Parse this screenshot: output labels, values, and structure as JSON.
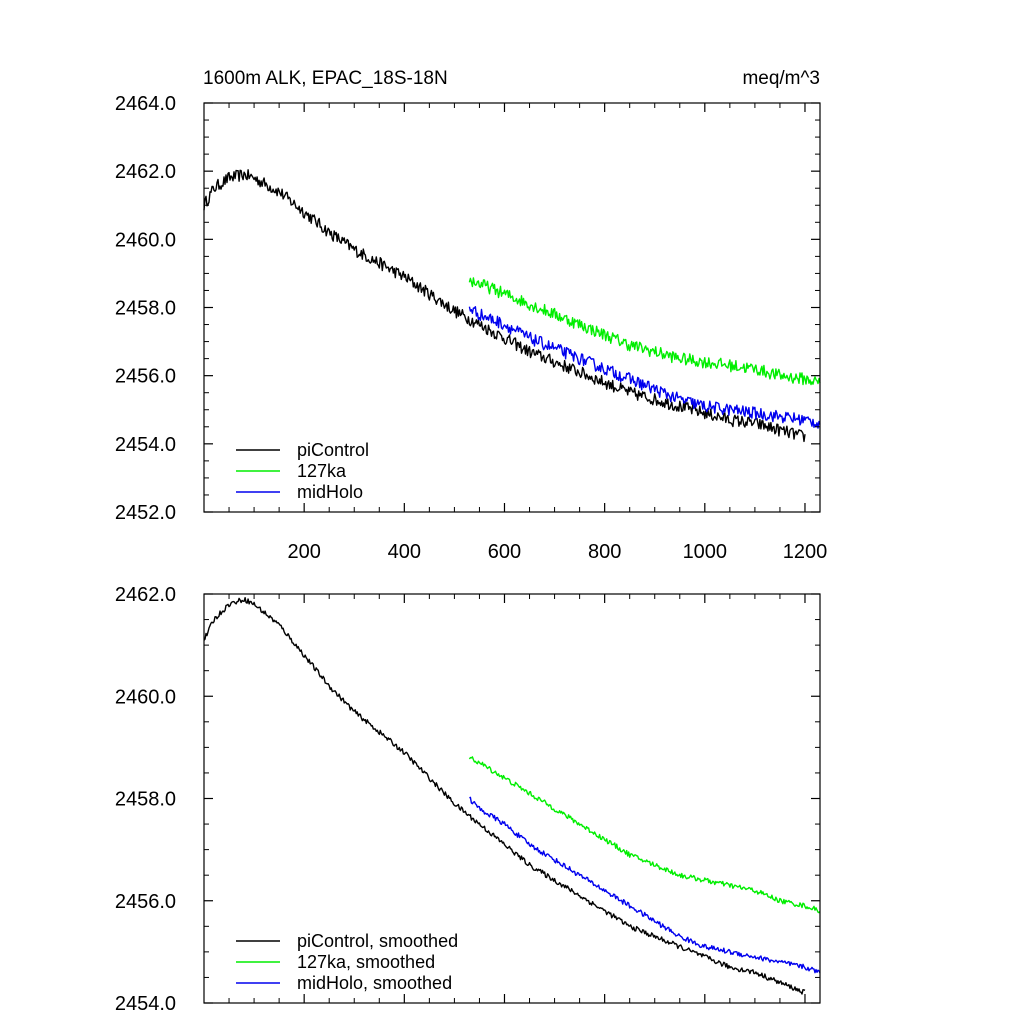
{
  "chart_data": [
    {
      "type": "line",
      "title_left": "1600m ALK, EPAC_18S-18N",
      "title_right": "meq/m^3",
      "xlim": [
        0,
        1230
      ],
      "ylim": [
        2452,
        2464
      ],
      "x_ticks": [
        200,
        400,
        600,
        800,
        1000,
        1200
      ],
      "x_tick_labels": [
        "200",
        "400",
        "600",
        "800",
        "1000",
        "1200"
      ],
      "y_ticks": [
        2452,
        2454,
        2456,
        2458,
        2460,
        2462,
        2464
      ],
      "y_tick_labels": [
        "2452.0",
        "2454.0",
        "2456.0",
        "2458.0",
        "2460.0",
        "2462.0",
        "2464.0"
      ],
      "legend_position": "bottom-left",
      "series": [
        {
          "name": "piControl",
          "color": "#000000",
          "noise": 0.18,
          "x": [
            0,
            20,
            50,
            80,
            100,
            150,
            200,
            250,
            300,
            350,
            400,
            450,
            500,
            550,
            600,
            650,
            700,
            750,
            800,
            850,
            900,
            950,
            1000,
            1050,
            1100,
            1150,
            1200
          ],
          "y": [
            2461.0,
            2461.5,
            2461.8,
            2461.9,
            2461.8,
            2461.4,
            2460.8,
            2460.2,
            2459.7,
            2459.3,
            2458.9,
            2458.4,
            2457.9,
            2457.5,
            2457.1,
            2456.7,
            2456.4,
            2456.1,
            2455.8,
            2455.5,
            2455.3,
            2455.1,
            2454.9,
            2454.7,
            2454.6,
            2454.4,
            2454.2
          ]
        },
        {
          "name": "127ka",
          "color": "#00ee00",
          "noise": 0.18,
          "x": [
            530,
            550,
            600,
            650,
            700,
            750,
            800,
            850,
            900,
            950,
            1000,
            1050,
            1100,
            1150,
            1200,
            1230
          ],
          "y": [
            2458.8,
            2458.7,
            2458.4,
            2458.1,
            2457.8,
            2457.5,
            2457.2,
            2456.9,
            2456.7,
            2456.5,
            2456.4,
            2456.3,
            2456.2,
            2456.0,
            2455.9,
            2455.8
          ]
        },
        {
          "name": "midHolo",
          "color": "#0000ee",
          "noise": 0.18,
          "x": [
            530,
            550,
            600,
            650,
            700,
            750,
            800,
            850,
            900,
            950,
            1000,
            1050,
            1100,
            1150,
            1200,
            1230
          ],
          "y": [
            2458.0,
            2457.8,
            2457.5,
            2457.1,
            2456.8,
            2456.5,
            2456.2,
            2455.9,
            2455.6,
            2455.3,
            2455.1,
            2455.0,
            2454.9,
            2454.8,
            2454.7,
            2454.6
          ]
        }
      ]
    },
    {
      "type": "line",
      "xlim": [
        0,
        1230
      ],
      "ylim": [
        2454,
        2462
      ],
      "x_ticks": [
        200,
        400,
        600,
        800,
        1000,
        1200
      ],
      "y_ticks": [
        2454,
        2456,
        2458,
        2460,
        2462
      ],
      "y_tick_labels": [
        "2454.0",
        "2456.0",
        "2458.0",
        "2460.0",
        "2462.0"
      ],
      "legend_position": "bottom-left",
      "series": [
        {
          "name": "piControl, smoothed",
          "color": "#000000",
          "noise": 0.05,
          "x": [
            0,
            20,
            50,
            80,
            100,
            150,
            200,
            250,
            300,
            350,
            400,
            450,
            500,
            550,
            600,
            650,
            700,
            750,
            800,
            850,
            900,
            950,
            1000,
            1050,
            1100,
            1150,
            1200
          ],
          "y": [
            2461.1,
            2461.5,
            2461.8,
            2461.9,
            2461.8,
            2461.4,
            2460.8,
            2460.2,
            2459.7,
            2459.3,
            2458.9,
            2458.4,
            2457.9,
            2457.5,
            2457.1,
            2456.7,
            2456.4,
            2456.1,
            2455.8,
            2455.5,
            2455.3,
            2455.1,
            2454.9,
            2454.7,
            2454.6,
            2454.4,
            2454.2
          ]
        },
        {
          "name": "127ka, smoothed",
          "color": "#00ee00",
          "noise": 0.05,
          "x": [
            530,
            550,
            600,
            650,
            700,
            750,
            800,
            850,
            900,
            950,
            1000,
            1050,
            1100,
            1150,
            1200,
            1230
          ],
          "y": [
            2458.8,
            2458.7,
            2458.4,
            2458.1,
            2457.8,
            2457.5,
            2457.2,
            2456.9,
            2456.7,
            2456.5,
            2456.4,
            2456.3,
            2456.2,
            2456.0,
            2455.9,
            2455.8
          ]
        },
        {
          "name": "midHolo, smoothed",
          "color": "#0000ee",
          "noise": 0.05,
          "x": [
            530,
            550,
            600,
            650,
            700,
            750,
            800,
            850,
            900,
            950,
            1000,
            1050,
            1100,
            1150,
            1200,
            1230
          ],
          "y": [
            2458.0,
            2457.8,
            2457.5,
            2457.1,
            2456.8,
            2456.5,
            2456.2,
            2455.9,
            2455.6,
            2455.3,
            2455.1,
            2455.0,
            2454.9,
            2454.8,
            2454.7,
            2454.6
          ]
        }
      ]
    }
  ]
}
